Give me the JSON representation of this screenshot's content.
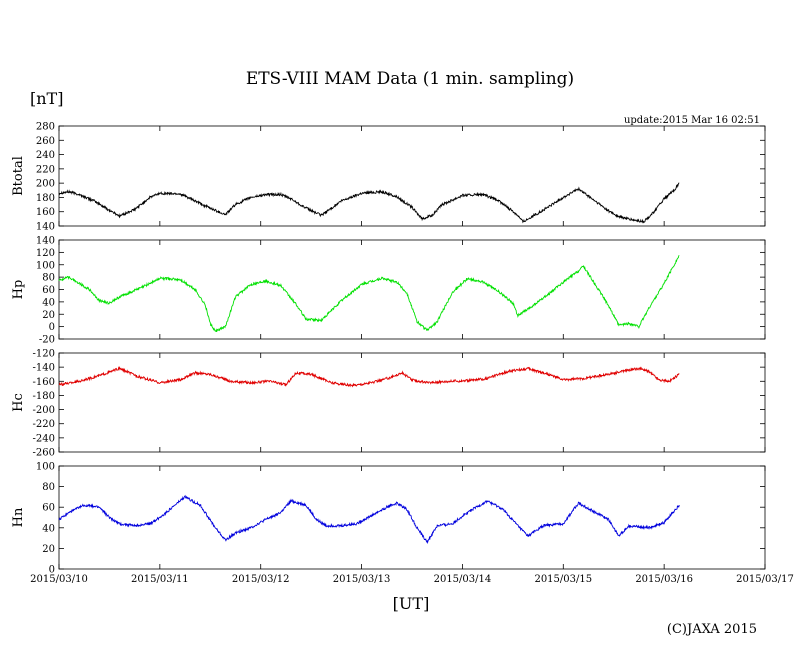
{
  "chart_data": {
    "type": "line",
    "title": "ETS-VIII MAM Data (1 min. sampling)",
    "y_unit": "[nT]",
    "xlabel": "[UT]",
    "update": "update:2015 Mar 16 02:51",
    "copyright": "(C)JAXA 2015",
    "x_ticks": [
      "2015/03/10",
      "2015/03/11",
      "2015/03/12",
      "2015/03/13",
      "2015/03/14",
      "2015/03/15",
      "2015/03/16",
      "2015/03/17"
    ],
    "x_range_days": [
      0,
      7
    ],
    "panels": [
      {
        "name": "Btotal",
        "color": "#000000",
        "ylim": [
          140,
          280
        ],
        "yticks": [
          140,
          160,
          180,
          200,
          220,
          240,
          260,
          280
        ],
        "x": [
          0,
          0.1,
          0.2,
          0.35,
          0.5,
          0.6,
          0.75,
          0.9,
          1.0,
          1.2,
          1.35,
          1.45,
          1.55,
          1.65,
          1.75,
          1.9,
          2.05,
          2.2,
          2.3,
          2.45,
          2.6,
          2.8,
          3.0,
          3.2,
          3.35,
          3.5,
          3.6,
          3.7,
          3.8,
          4.0,
          4.2,
          4.35,
          4.45,
          4.55,
          4.6,
          4.8,
          5.0,
          5.15,
          5.45,
          5.55,
          5.7,
          5.8,
          5.9,
          6.0,
          6.1,
          6.15
        ],
        "y": [
          186,
          188,
          184,
          175,
          162,
          154,
          163,
          180,
          186,
          185,
          175,
          168,
          162,
          156,
          170,
          180,
          184,
          184,
          178,
          165,
          155,
          175,
          186,
          188,
          181,
          166,
          150,
          155,
          170,
          183,
          184,
          176,
          166,
          155,
          146,
          162,
          180,
          192,
          161,
          153,
          148,
          146,
          160,
          178,
          190,
          200
        ]
      },
      {
        "name": "Hp",
        "color": "#00e000",
        "ylim": [
          -20,
          140
        ],
        "yticks": [
          -20,
          0,
          20,
          40,
          60,
          80,
          100,
          120,
          140
        ],
        "x": [
          0,
          0.1,
          0.2,
          0.3,
          0.4,
          0.5,
          0.6,
          0.8,
          1.0,
          1.2,
          1.35,
          1.45,
          1.5,
          1.55,
          1.65,
          1.75,
          1.9,
          2.05,
          2.2,
          2.35,
          2.45,
          2.6,
          2.8,
          3.0,
          3.2,
          3.35,
          3.45,
          3.55,
          3.65,
          3.75,
          3.9,
          4.05,
          4.2,
          4.35,
          4.5,
          4.55,
          4.65,
          4.85,
          5.0,
          5.15,
          5.2,
          5.45,
          5.55,
          5.65,
          5.75,
          5.85,
          6.0,
          6.15
        ],
        "y": [
          75,
          80,
          70,
          60,
          42,
          38,
          48,
          62,
          78,
          76,
          60,
          35,
          5,
          -8,
          0,
          48,
          68,
          74,
          66,
          36,
          12,
          10,
          42,
          68,
          78,
          72,
          54,
          8,
          -6,
          8,
          55,
          78,
          72,
          58,
          38,
          18,
          28,
          52,
          72,
          90,
          98,
          34,
          2,
          5,
          0,
          30,
          70,
          115
        ]
      },
      {
        "name": "Hc",
        "color": "#e00000",
        "ylim": [
          -260,
          -120
        ],
        "yticks": [
          -260,
          -240,
          -220,
          -200,
          -180,
          -160,
          -140,
          -120
        ],
        "x": [
          0,
          0.2,
          0.4,
          0.6,
          0.8,
          1.0,
          1.2,
          1.35,
          1.5,
          1.7,
          1.9,
          2.1,
          2.25,
          2.35,
          2.5,
          2.7,
          2.9,
          3.1,
          3.3,
          3.4,
          3.5,
          3.65,
          3.85,
          4.05,
          4.25,
          4.45,
          4.65,
          4.85,
          5.0,
          5.2,
          5.45,
          5.65,
          5.75,
          5.85,
          5.95,
          6.05,
          6.15
        ],
        "y": [
          -165,
          -160,
          -152,
          -142,
          -154,
          -162,
          -158,
          -148,
          -150,
          -160,
          -162,
          -160,
          -165,
          -148,
          -150,
          -162,
          -166,
          -162,
          -154,
          -148,
          -158,
          -162,
          -160,
          -159,
          -156,
          -146,
          -142,
          -150,
          -158,
          -156,
          -150,
          -144,
          -142,
          -146,
          -158,
          -160,
          -150
        ]
      },
      {
        "name": "Hn",
        "color": "#0000dd",
        "ylim": [
          0,
          100
        ],
        "yticks": [
          0,
          20,
          40,
          60,
          80,
          100
        ],
        "x": [
          0,
          0.1,
          0.25,
          0.4,
          0.5,
          0.6,
          0.75,
          0.9,
          1.0,
          1.1,
          1.25,
          1.4,
          1.55,
          1.65,
          1.75,
          1.9,
          2.05,
          2.2,
          2.3,
          2.45,
          2.55,
          2.65,
          2.8,
          2.95,
          3.1,
          3.25,
          3.35,
          3.45,
          3.55,
          3.65,
          3.75,
          3.9,
          4.05,
          4.25,
          4.4,
          4.55,
          4.65,
          4.8,
          5.0,
          5.15,
          5.45,
          5.55,
          5.65,
          5.85,
          6.0,
          6.15
        ],
        "y": [
          48,
          55,
          62,
          60,
          50,
          44,
          42,
          44,
          50,
          58,
          70,
          62,
          40,
          28,
          35,
          40,
          48,
          55,
          66,
          62,
          48,
          42,
          42,
          44,
          52,
          60,
          64,
          58,
          40,
          26,
          42,
          44,
          55,
          66,
          58,
          42,
          32,
          42,
          44,
          64,
          48,
          32,
          42,
          40,
          45,
          62
        ]
      }
    ]
  }
}
